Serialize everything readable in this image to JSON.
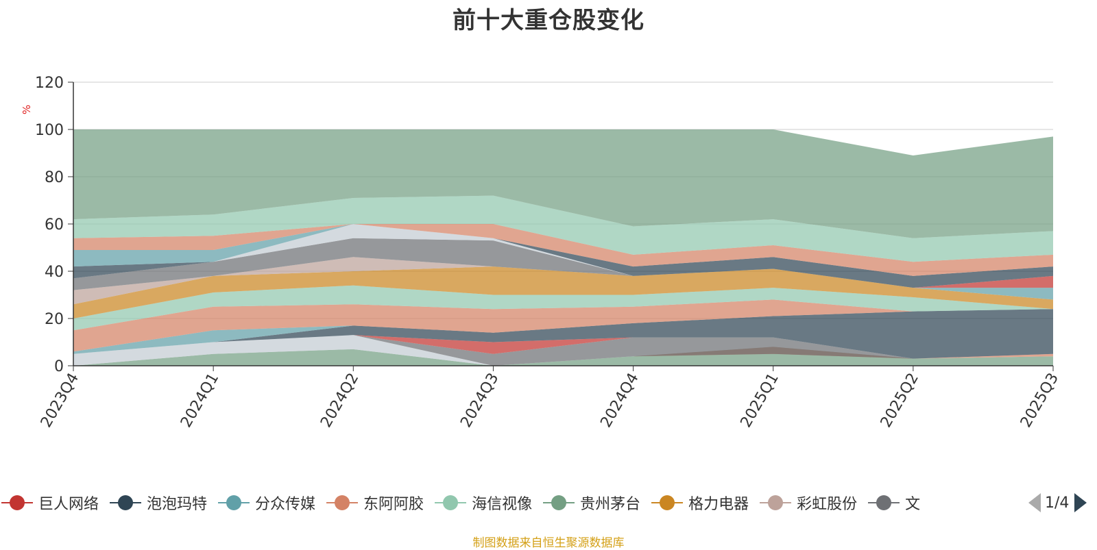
{
  "chart_data": {
    "type": "area",
    "title": "前十大重仓股变化",
    "ylabel": "%",
    "ylim": [
      0,
      120
    ],
    "yticks": [
      "0",
      "20",
      "40",
      "60",
      "80",
      "100",
      "120"
    ],
    "categories": [
      "2023Q4",
      "2024Q1",
      "2024Q2",
      "2024Q3",
      "2024Q4",
      "2025Q1",
      "2025Q2",
      "2025Q3"
    ],
    "grid": true,
    "legend_position": "bottom",
    "colors": [
      "#c23531",
      "#2f4554",
      "#61a0a8",
      "#d48265",
      "#91c7ae",
      "#749f83",
      "#ca8622",
      "#bda29a",
      "#6e7074",
      "#c4ccd3"
    ],
    "layers": [
      {
        "color": "#749f83",
        "upper": [
          0,
          5,
          7,
          0,
          4,
          8,
          3,
          4
        ]
      },
      {
        "color": "#c4ccd3",
        "upper": [
          5,
          10,
          13,
          0,
          4,
          8,
          3,
          4
        ]
      },
      {
        "color": "#d48265",
        "upper": [
          5,
          10,
          13,
          0,
          4,
          5,
          3,
          5
        ]
      },
      {
        "color": "#6e7074",
        "upper": [
          5,
          10,
          13,
          5,
          12,
          12,
          3,
          5
        ]
      },
      {
        "color": "#c23531",
        "upper": [
          5,
          10,
          13,
          10,
          12,
          12,
          3,
          5
        ]
      },
      {
        "color": "#2f4554",
        "upper": [
          5,
          10,
          17,
          14,
          18,
          21,
          23,
          24
        ]
      },
      {
        "color": "#61a0a8",
        "upper": [
          6,
          15,
          17,
          14,
          18,
          21,
          23,
          24
        ]
      },
      {
        "color": "#d48265",
        "upper": [
          15,
          25,
          26,
          24,
          25,
          28,
          23,
          24
        ]
      },
      {
        "color": "#91c7ae",
        "upper": [
          20,
          31,
          34,
          30,
          30,
          33,
          29,
          24
        ]
      },
      {
        "color": "#ca8622",
        "upper": [
          26,
          38,
          40,
          42,
          38,
          41,
          33,
          28
        ]
      },
      {
        "color": "#bda29a",
        "upper": [
          32,
          38,
          46,
          42,
          38,
          41,
          33,
          28
        ]
      },
      {
        "color": "#6e7074",
        "upper": [
          37,
          44,
          54,
          53,
          38,
          41,
          33,
          28
        ]
      },
      {
        "color": "#c4ccd3",
        "upper": [
          37,
          44,
          60,
          54,
          38,
          41,
          33,
          28
        ]
      },
      {
        "color": "#61a0a8",
        "upper": [
          37,
          44,
          60,
          54,
          38,
          41,
          33,
          33
        ]
      },
      {
        "color": "#c23531",
        "upper": [
          37,
          44,
          60,
          54,
          38,
          41,
          33,
          38
        ]
      },
      {
        "color": "#2f4554",
        "upper": [
          42,
          44,
          60,
          54,
          42,
          46,
          38,
          42
        ]
      },
      {
        "color": "#61a0a8",
        "upper": [
          49,
          49,
          60,
          54,
          42,
          46,
          38,
          42
        ]
      },
      {
        "color": "#d48265",
        "upper": [
          54,
          55,
          60,
          60,
          47,
          51,
          44,
          47
        ]
      },
      {
        "color": "#91c7ae",
        "upper": [
          62,
          64,
          71,
          72,
          59,
          62,
          54,
          57
        ]
      },
      {
        "color": "#749f83",
        "upper": [
          100,
          100,
          100,
          100,
          100,
          100,
          89,
          97
        ]
      }
    ],
    "legend": [
      {
        "name": "巨人网络",
        "color": "#c23531"
      },
      {
        "name": "泡泡玛特",
        "color": "#2f4554"
      },
      {
        "name": "分众传媒",
        "color": "#61a0a8"
      },
      {
        "name": "东阿阿胶",
        "color": "#d48265"
      },
      {
        "name": "海信视像",
        "color": "#91c7ae"
      },
      {
        "name": "贵州茅台",
        "color": "#749f83"
      },
      {
        "name": "格力电器",
        "color": "#ca8622"
      },
      {
        "name": "彩虹股份",
        "color": "#bda29a"
      },
      {
        "name": "文",
        "color": "#6e7074"
      }
    ]
  },
  "pager": {
    "text": "1/4"
  },
  "source_note": "制图数据来自恒生聚源数据库"
}
